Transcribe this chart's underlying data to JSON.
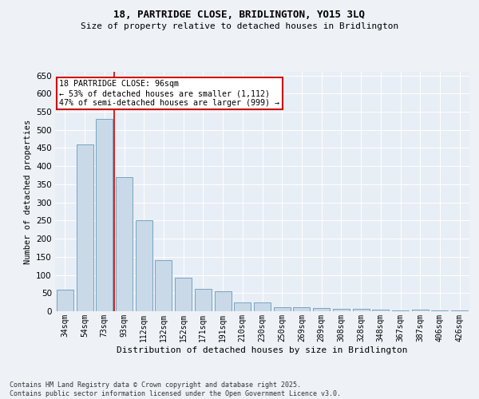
{
  "title_line1": "18, PARTRIDGE CLOSE, BRIDLINGTON, YO15 3LQ",
  "title_line2": "Size of property relative to detached houses in Bridlington",
  "xlabel": "Distribution of detached houses by size in Bridlington",
  "ylabel": "Number of detached properties",
  "categories": [
    "34sqm",
    "54sqm",
    "73sqm",
    "93sqm",
    "112sqm",
    "132sqm",
    "152sqm",
    "171sqm",
    "191sqm",
    "210sqm",
    "230sqm",
    "250sqm",
    "269sqm",
    "289sqm",
    "308sqm",
    "328sqm",
    "348sqm",
    "367sqm",
    "387sqm",
    "406sqm",
    "426sqm"
  ],
  "values": [
    60,
    460,
    530,
    370,
    250,
    140,
    93,
    62,
    55,
    25,
    25,
    10,
    10,
    8,
    6,
    7,
    5,
    3,
    5,
    2,
    2
  ],
  "bar_color": "#c9d9e8",
  "bar_edge_color": "#6699bb",
  "ref_line_color": "#cc0000",
  "annotation_text": "18 PARTRIDGE CLOSE: 96sqm\n← 53% of detached houses are smaller (1,112)\n47% of semi-detached houses are larger (999) →",
  "annotation_box_color": "#cc0000",
  "ylim": [
    0,
    660
  ],
  "yticks": [
    0,
    50,
    100,
    150,
    200,
    250,
    300,
    350,
    400,
    450,
    500,
    550,
    600,
    650
  ],
  "background_color": "#eef2f7",
  "plot_bg_color": "#e8eef5",
  "grid_color": "#ffffff",
  "footer_line1": "Contains HM Land Registry data © Crown copyright and database right 2025.",
  "footer_line2": "Contains public sector information licensed under the Open Government Licence v3.0."
}
